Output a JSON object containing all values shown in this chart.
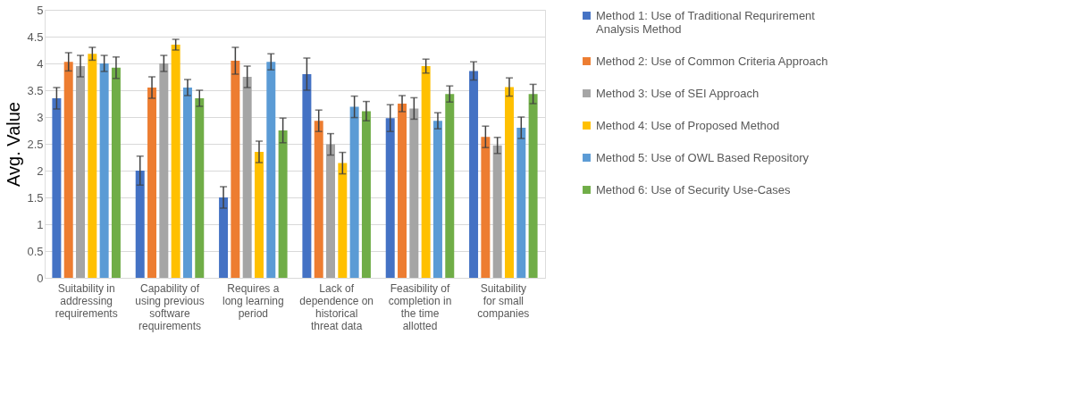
{
  "chart_data": {
    "type": "bar",
    "ylabel": "Avg. Value",
    "categories": [
      "Suitability in addressing requirements",
      "Capability of using previous software requirements",
      "Requires a long learning period",
      "Lack of dependence on historical threat data",
      "Feasibility of completion in the time allotted",
      "Suitability for small companies"
    ],
    "series": [
      {
        "name": "Method 1: Use of Traditional Requrirement Analysis Method",
        "color": "#4472c4",
        "values": [
          3.35,
          2.0,
          1.5,
          3.8,
          2.98,
          3.86
        ],
        "errors": [
          0.2,
          0.27,
          0.2,
          0.3,
          0.25,
          0.17
        ]
      },
      {
        "name": "Method 2: Use of Common Criteria Approach",
        "color": "#ed7d31",
        "values": [
          4.03,
          3.55,
          4.05,
          2.93,
          3.25,
          2.63
        ],
        "errors": [
          0.17,
          0.2,
          0.25,
          0.2,
          0.15,
          0.2
        ]
      },
      {
        "name": "Method 3: Use of SEI Approach",
        "color": "#a5a5a5",
        "values": [
          3.95,
          4.0,
          3.75,
          2.49,
          3.16,
          2.47
        ],
        "errors": [
          0.2,
          0.15,
          0.2,
          0.2,
          0.2,
          0.15
        ]
      },
      {
        "name": "Method 4: Use of Proposed Method",
        "color": "#ffc000",
        "values": [
          4.18,
          4.35,
          2.35,
          2.14,
          3.95,
          3.56
        ],
        "errors": [
          0.12,
          0.1,
          0.2,
          0.2,
          0.13,
          0.17
        ]
      },
      {
        "name": "Method 5: Use of OWL Based Repository",
        "color": "#5b9bd5",
        "values": [
          4.0,
          3.55,
          4.03,
          3.19,
          2.93,
          2.8
        ],
        "errors": [
          0.15,
          0.15,
          0.15,
          0.2,
          0.15,
          0.2
        ]
      },
      {
        "name": "Method 6: Use of Security Use-Cases",
        "color": "#70ad47",
        "values": [
          3.92,
          3.35,
          2.75,
          3.11,
          3.43,
          3.43
        ],
        "errors": [
          0.2,
          0.15,
          0.23,
          0.18,
          0.15,
          0.18
        ]
      }
    ],
    "ylim": [
      0,
      5
    ],
    "yticks": [
      0,
      0.5,
      1,
      1.5,
      2,
      2.5,
      3,
      3.5,
      4,
      4.5,
      5
    ],
    "grid": "y",
    "legend": "right"
  }
}
